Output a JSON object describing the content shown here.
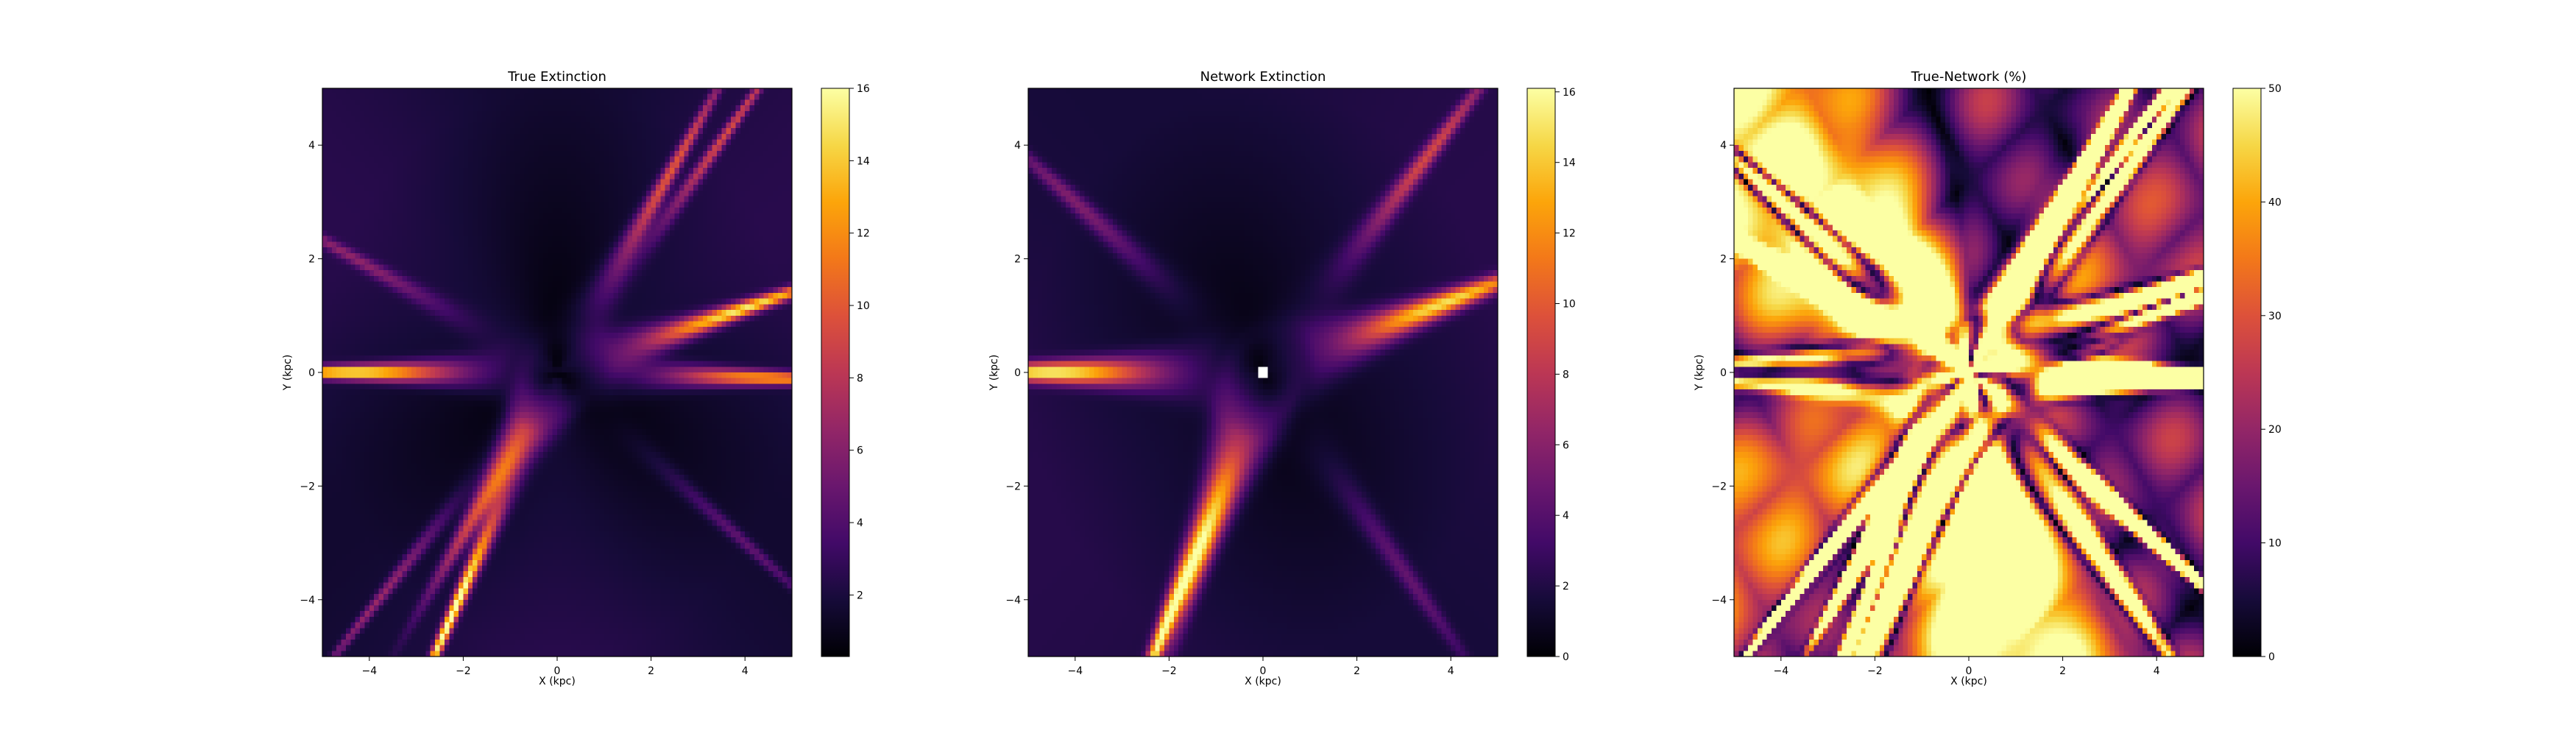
{
  "chart_data": [
    {
      "type": "heatmap",
      "title": "True Extinction",
      "xlabel": "X (kpc)",
      "ylabel": "Y (kpc)",
      "xlim": [
        -5,
        5
      ],
      "ylim": [
        -5,
        5
      ],
      "x_ticks": [
        -4,
        -2,
        0,
        2,
        4
      ],
      "y_ticks": [
        -4,
        -2,
        0,
        2,
        4
      ],
      "colormap": "inferno",
      "colorbar": {
        "min": 0.3,
        "max": 16,
        "ticks": [
          2,
          4,
          6,
          8,
          10,
          12,
          14,
          16
        ]
      },
      "features": [
        {
          "x": -4.4,
          "y": 0.0,
          "value": 14
        },
        {
          "x": 3.9,
          "y": 1.1,
          "value": 13
        },
        {
          "x": 4.5,
          "y": -0.1,
          "value": 11
        },
        {
          "x": -2.2,
          "y": -4.2,
          "value": 15
        },
        {
          "x": -1.4,
          "y": -2.0,
          "value": 9
        },
        {
          "x": 2.4,
          "y": 3.5,
          "value": 8
        },
        {
          "x": 3.6,
          "y": 4.2,
          "value": 7
        },
        {
          "x": -4.3,
          "y": 2.0,
          "value": 4
        },
        {
          "x": -3.8,
          "y": -4.0,
          "value": 5
        },
        {
          "x": 4.0,
          "y": -3.0,
          "value": 3
        }
      ]
    },
    {
      "type": "heatmap",
      "title": "Network Extinction",
      "xlabel": "X (kpc)",
      "ylabel": "Y (kpc)",
      "xlim": [
        -5,
        5
      ],
      "ylim": [
        -5,
        5
      ],
      "x_ticks": [
        -4,
        -2,
        0,
        2,
        4
      ],
      "y_ticks": [
        -4,
        -2,
        0,
        2,
        4
      ],
      "colormap": "inferno",
      "colorbar": {
        "min": 0,
        "max": 16.1,
        "ticks": [
          0,
          2,
          4,
          6,
          8,
          10,
          12,
          14,
          16
        ]
      },
      "features": [
        {
          "x": -4.5,
          "y": 0.0,
          "value": 14
        },
        {
          "x": 3.8,
          "y": 1.2,
          "value": 13
        },
        {
          "x": -2.0,
          "y": -4.3,
          "value": 15
        },
        {
          "x": -1.0,
          "y": -2.5,
          "value": 8
        },
        {
          "x": 3.5,
          "y": 3.8,
          "value": 7
        },
        {
          "x": -4.0,
          "y": 3.0,
          "value": 4
        },
        {
          "x": 3.0,
          "y": -3.5,
          "value": 3
        }
      ]
    },
    {
      "type": "heatmap",
      "title": "True-Network (%)",
      "xlabel": "X (kpc)",
      "ylabel": "Y (kpc)",
      "xlim": [
        -5,
        5
      ],
      "ylim": [
        -5,
        5
      ],
      "x_ticks": [
        -4,
        -2,
        0,
        2,
        4
      ],
      "y_ticks": [
        -4,
        -2,
        0,
        2,
        4
      ],
      "colormap": "inferno",
      "colorbar": {
        "min": 0,
        "max": 50,
        "ticks": [
          0,
          10,
          20,
          30,
          40,
          50
        ]
      }
    }
  ]
}
